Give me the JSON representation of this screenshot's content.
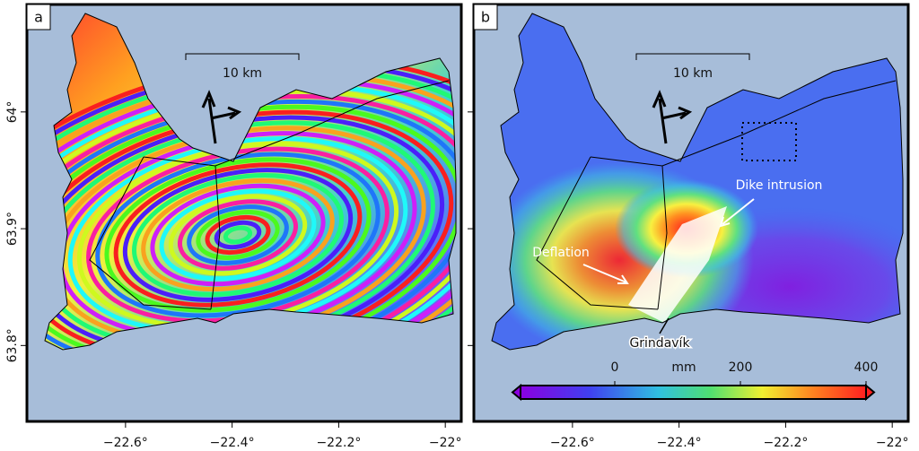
{
  "axes": {
    "xlim": [
      -22.785,
      -21.97
    ],
    "xticks": [
      {
        "value": -22.6,
        "label": "−22.6°"
      },
      {
        "value": -22.4,
        "label": "−22.4°"
      },
      {
        "value": -22.2,
        "label": "−22.2°"
      },
      {
        "value": -22,
        "label": "−22°"
      }
    ],
    "ylim": [
      63.735,
      64.092
    ],
    "yticks": [
      {
        "value": 63.8,
        "label": "63.8°"
      },
      {
        "value": 63.9,
        "label": "63.9°"
      },
      {
        "value": 64,
        "label": "64°"
      }
    ]
  },
  "panels": [
    {
      "label": "a",
      "scale_bar": "10 km"
    },
    {
      "label": "b",
      "scale_bar": "10 km",
      "annotations": [
        "Dike intrusion",
        "Deflation",
        "Grindavík"
      ],
      "colorbar": {
        "title": "mm",
        "lim": [
          -150,
          400
        ],
        "ticks": [
          0,
          200,
          400
        ]
      }
    }
  ]
}
